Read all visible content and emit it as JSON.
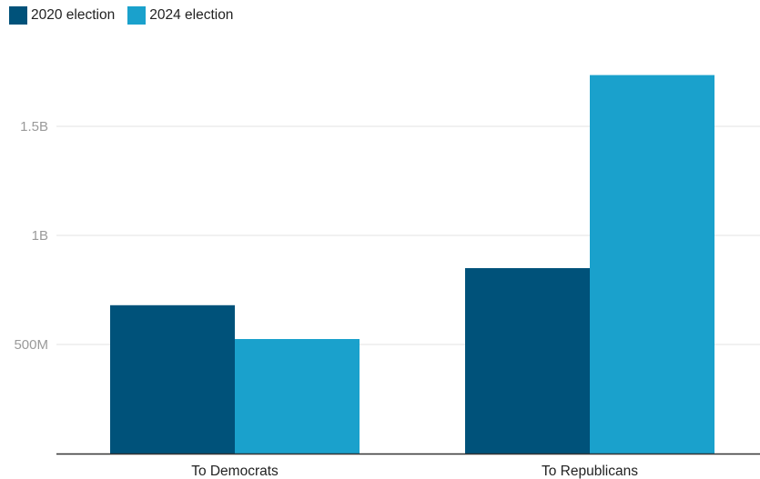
{
  "chart_data": {
    "type": "bar",
    "categories": [
      "To Democrats",
      "To Republicans"
    ],
    "series": [
      {
        "name": "2020 election",
        "color": "#00527a",
        "values": [
          680000000,
          850000000
        ]
      },
      {
        "name": "2024 election",
        "color": "#1aa1cc",
        "values": [
          525000000,
          1735000000
        ]
      }
    ],
    "yticks": [
      {
        "value": 500000000,
        "label": "500M"
      },
      {
        "value": 1000000000,
        "label": "1B"
      },
      {
        "value": 1500000000,
        "label": "1.5B"
      }
    ],
    "ylim": [
      0,
      1500000000
    ],
    "grid": true,
    "legend": "top-left",
    "title": "",
    "xlabel": "",
    "ylabel": ""
  }
}
